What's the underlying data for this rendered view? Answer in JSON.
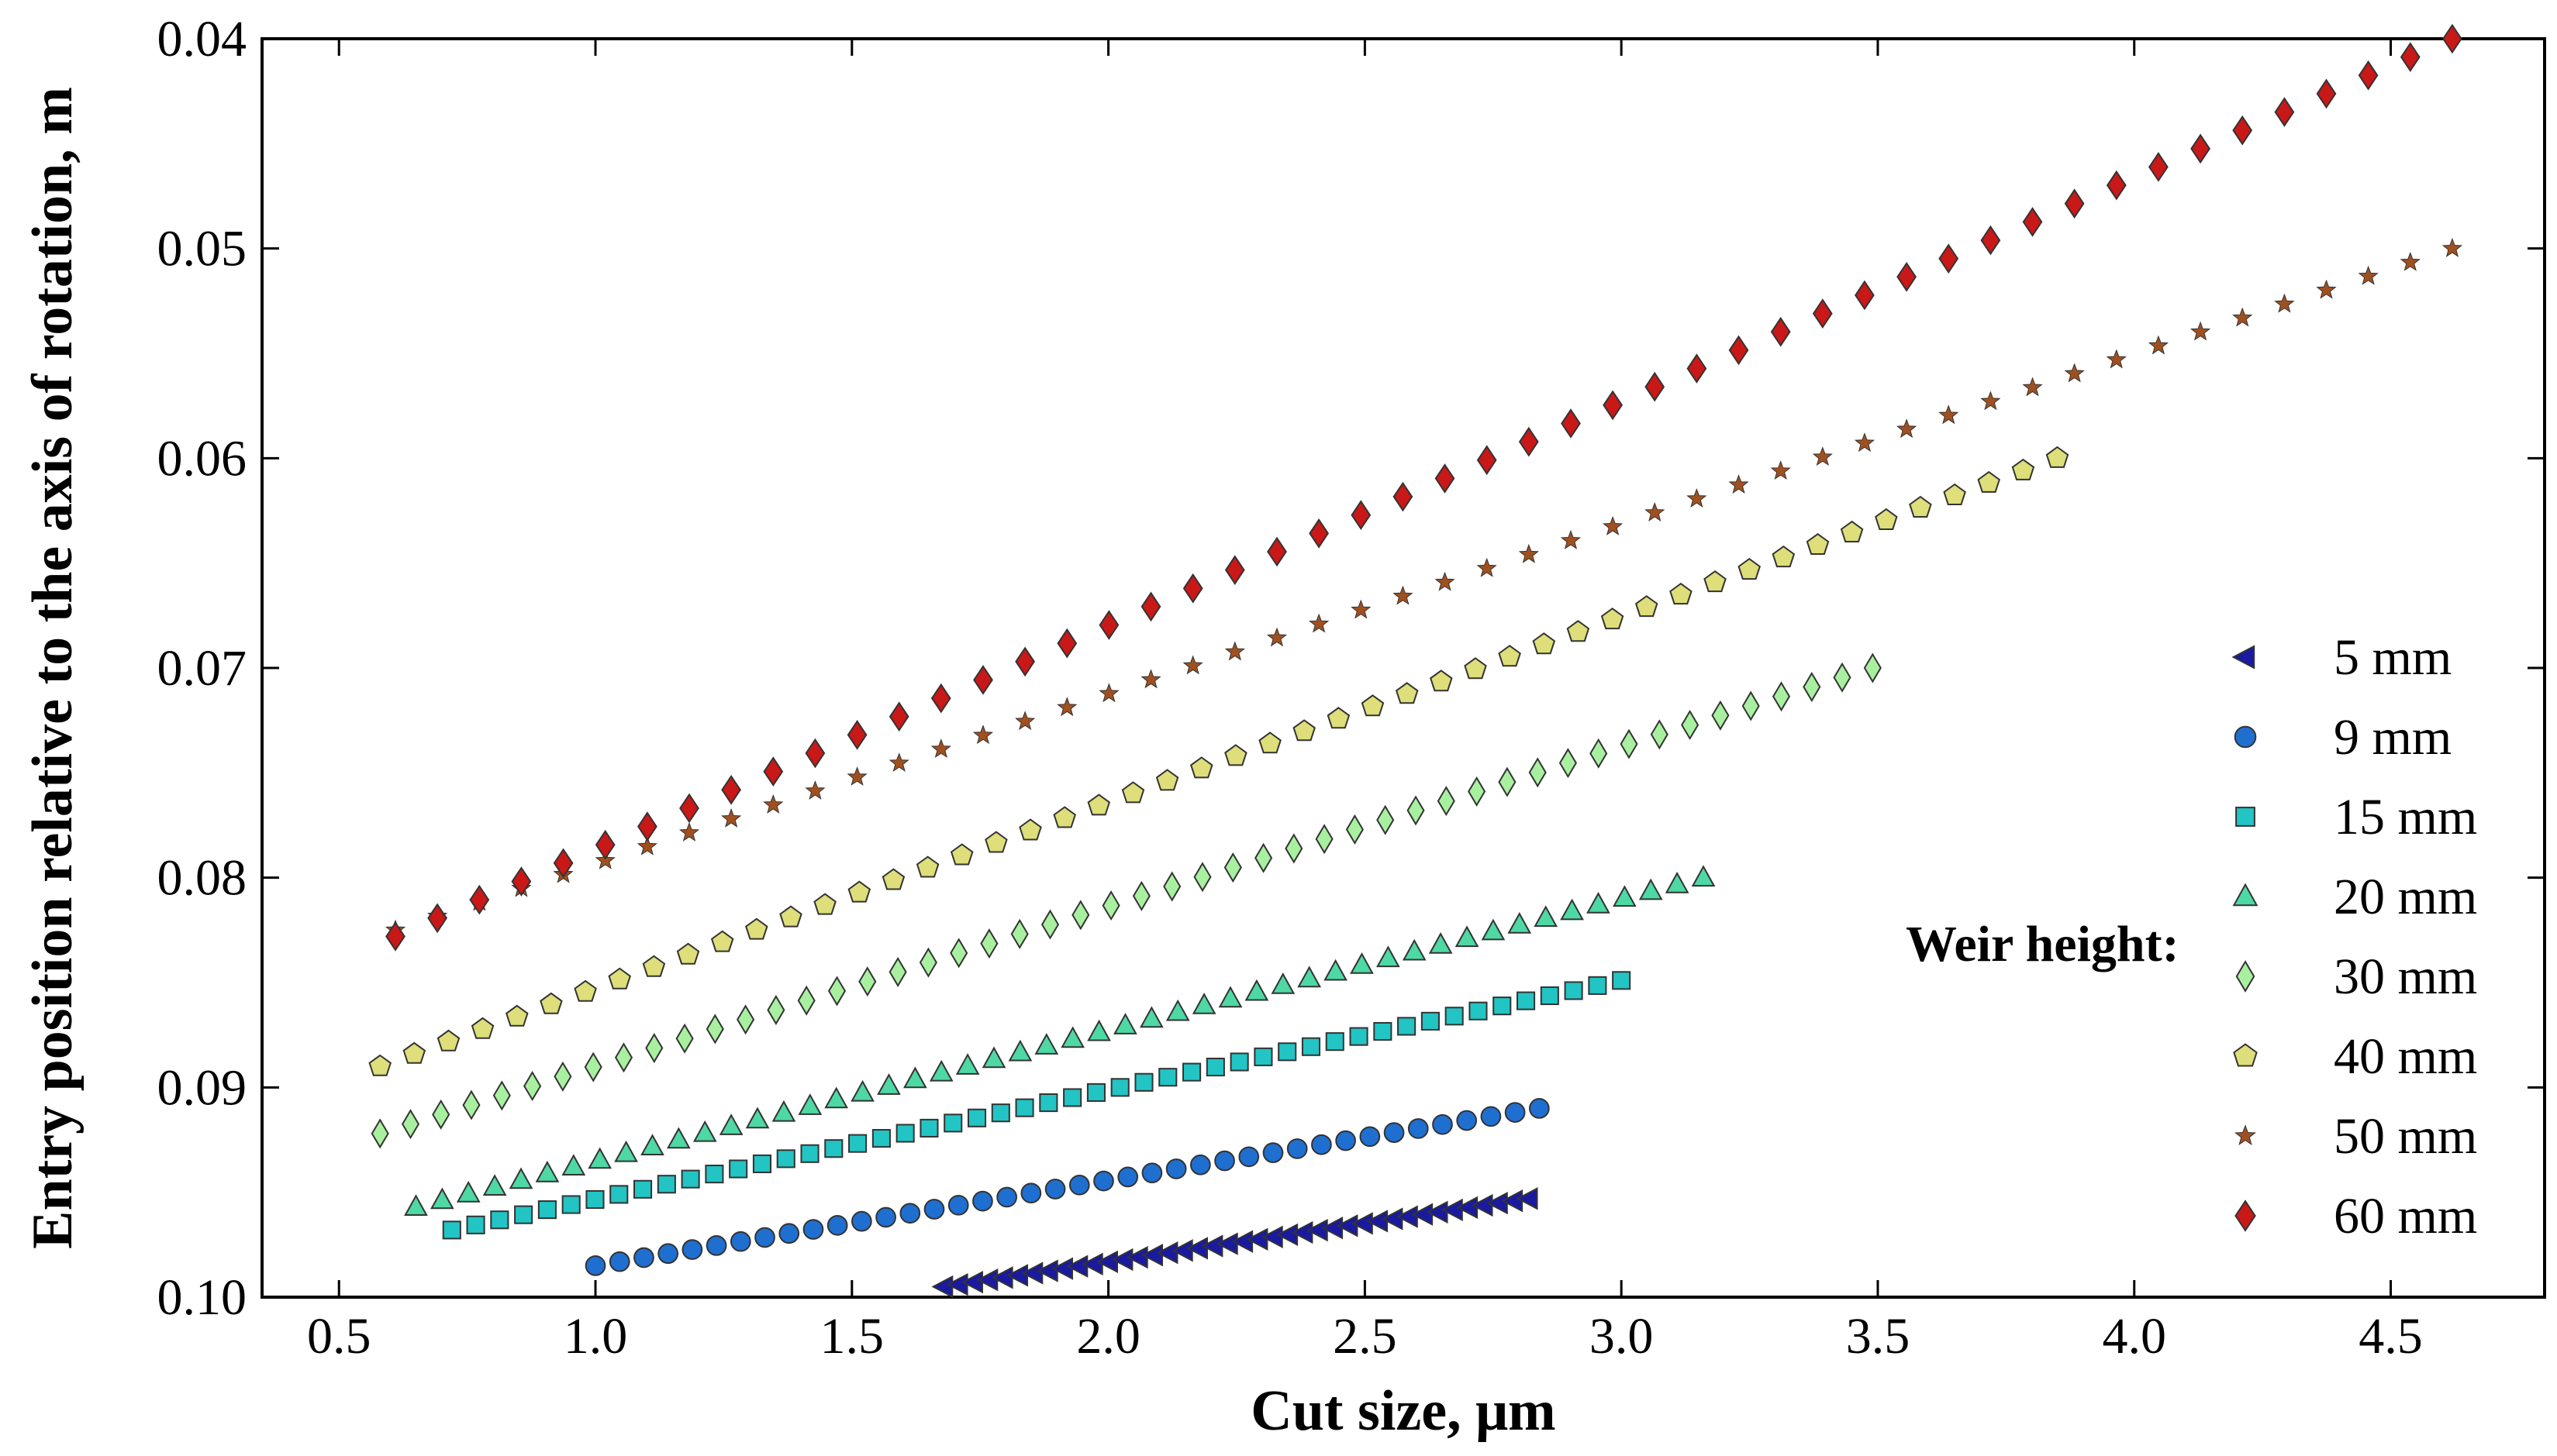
{
  "chart_data": {
    "type": "scatter",
    "title": "",
    "xlabel": "Cut size, μm",
    "ylabel": "Entry position relative to the axis of rotation, m",
    "xlim": [
      0.35,
      4.8
    ],
    "ylim": [
      0.1,
      0.04
    ],
    "y_inverted": true,
    "grid": false,
    "x_ticks": [
      0.5,
      1.0,
      1.5,
      2.0,
      2.5,
      3.0,
      3.5,
      4.0,
      4.5
    ],
    "x_tick_labels": [
      "0.5",
      "1.0",
      "1.5",
      "2.0",
      "2.5",
      "3.0",
      "3.5",
      "4.0",
      "4.5"
    ],
    "y_ticks": [
      0.04,
      0.05,
      0.06,
      0.07,
      0.08,
      0.09,
      0.1
    ],
    "y_tick_labels": [
      "0.04",
      "0.05",
      "0.06",
      "0.07",
      "0.08",
      "0.09",
      "0.10"
    ],
    "legend_title": "Weir height:",
    "legend_position": "right",
    "series": [
      {
        "name": "5 mm",
        "marker": "triangle-left",
        "color": "#1a1aa0",
        "x_start": 1.68,
        "x_end": 2.82,
        "y_start": 0.0995,
        "y_end": 0.0953,
        "points": 40
      },
      {
        "name": "9 mm",
        "marker": "circle",
        "color": "#1f6fd0",
        "x_start": 1.0,
        "x_end": 2.84,
        "y_start": 0.0985,
        "y_end": 0.091,
        "points": 40
      },
      {
        "name": "15 mm",
        "marker": "square",
        "color": "#22c4c4",
        "x_start": 0.72,
        "x_end": 3.0,
        "y_start": 0.0968,
        "y_end": 0.0849,
        "points": 50
      },
      {
        "name": "20 mm",
        "marker": "triangle-up",
        "color": "#4ed8a4",
        "x_start": 0.65,
        "x_end": 3.16,
        "y_start": 0.0957,
        "y_end": 0.08,
        "points": 50
      },
      {
        "name": "30 mm",
        "marker": "diamond-thin",
        "color": "#a8f0a0",
        "x_start": 0.58,
        "x_end": 3.49,
        "y_start": 0.0922,
        "y_end": 0.07,
        "points": 50
      },
      {
        "name": "40 mm",
        "marker": "pentagon",
        "color": "#dede7a",
        "x_start": 0.58,
        "x_end": 3.85,
        "y_start": 0.089,
        "y_end": 0.06,
        "points": 50
      },
      {
        "name": "50 mm",
        "marker": "star",
        "color": "#a05020",
        "x_start": 0.61,
        "x_end": 4.62,
        "y_start": 0.0825,
        "y_end": 0.05,
        "points": 50
      },
      {
        "name": "60 mm",
        "marker": "diamond",
        "color": "#c81818",
        "x_start": 0.61,
        "x_end": 4.62,
        "y_start": 0.0828,
        "y_end": 0.04,
        "points": 50
      }
    ]
  }
}
